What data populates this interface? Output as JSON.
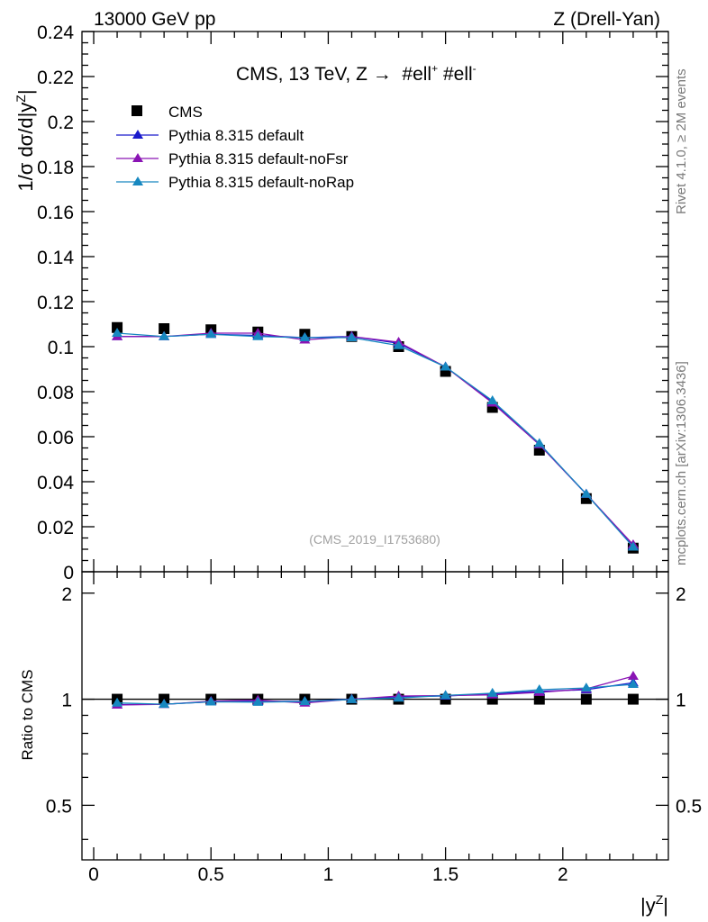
{
  "header": {
    "left": "13000 GeV pp",
    "right": "Z (Drell-Yan)"
  },
  "side_labels": {
    "rivet": "Rivet 4.1.0, ≥ 2M events",
    "mcplots": "mcplots.cern.ch [arXiv:1306.3436]"
  },
  "chart_data": {
    "type": "line",
    "title": "CMS, 13 TeV, Z →  #ell⁺ #ell⁻",
    "analysis_id": "(CMS_2019_I1753680)",
    "xlabel": "|y^Z|",
    "ylabel": "1/σ dσ/d|y^Z|",
    "ratio_ylabel": "Ratio to CMS",
    "xlim": [
      -0.05,
      2.45
    ],
    "ylim": [
      0,
      0.24
    ],
    "ratio_ylim": [
      0.35,
      2.3
    ],
    "x_ticks": [
      "0",
      "0.5",
      "1",
      "1.5",
      "2"
    ],
    "y_ticks": [
      "0",
      "0.02",
      "0.04",
      "0.06",
      "0.08",
      "0.1",
      "0.12",
      "0.14",
      "0.16",
      "0.18",
      "0.2",
      "0.22",
      "0.24"
    ],
    "ratio_ticks": [
      "0.5",
      "1",
      "2"
    ],
    "x": [
      0.1,
      0.3,
      0.5,
      0.7,
      0.9,
      1.1,
      1.3,
      1.5,
      1.7,
      1.9,
      2.1,
      2.3
    ],
    "data": {
      "name": "CMS",
      "color": "#000000",
      "values": [
        0.1085,
        0.108,
        0.1075,
        0.1065,
        0.1055,
        0.1045,
        0.1,
        0.089,
        0.073,
        0.054,
        0.0325,
        0.0105
      ]
    },
    "series": [
      {
        "name": "Pythia 8.315 default",
        "color": "#1a1acc",
        "values": [
          0.1045,
          0.1045,
          0.1055,
          0.105,
          0.104,
          0.1045,
          0.1015,
          0.091,
          0.0755,
          0.0565,
          0.0345,
          0.0115
        ],
        "ratio": [
          0.965,
          0.968,
          0.983,
          0.986,
          0.986,
          1.0,
          1.016,
          1.021,
          1.036,
          1.053,
          1.064,
          1.114
        ]
      },
      {
        "name": "Pythia 8.315 default-noFsr",
        "color": "#8a14b4",
        "values": [
          0.1045,
          0.1045,
          0.106,
          0.106,
          0.103,
          0.1045,
          0.102,
          0.091,
          0.075,
          0.0565,
          0.0345,
          0.012
        ],
        "ratio": [
          0.963,
          0.967,
          0.987,
          0.994,
          0.976,
          1.0,
          1.021,
          1.024,
          1.029,
          1.046,
          1.07,
          1.162
        ]
      },
      {
        "name": "Pythia 8.315 default-noRap",
        "color": "#1788c0",
        "values": [
          0.106,
          0.1045,
          0.1055,
          0.1045,
          0.104,
          0.104,
          0.1005,
          0.091,
          0.076,
          0.057,
          0.0345,
          0.011
        ],
        "ratio": [
          0.976,
          0.968,
          0.983,
          0.981,
          0.985,
          0.998,
          1.008,
          1.025,
          1.04,
          1.064,
          1.076,
          1.102
        ]
      }
    ]
  }
}
